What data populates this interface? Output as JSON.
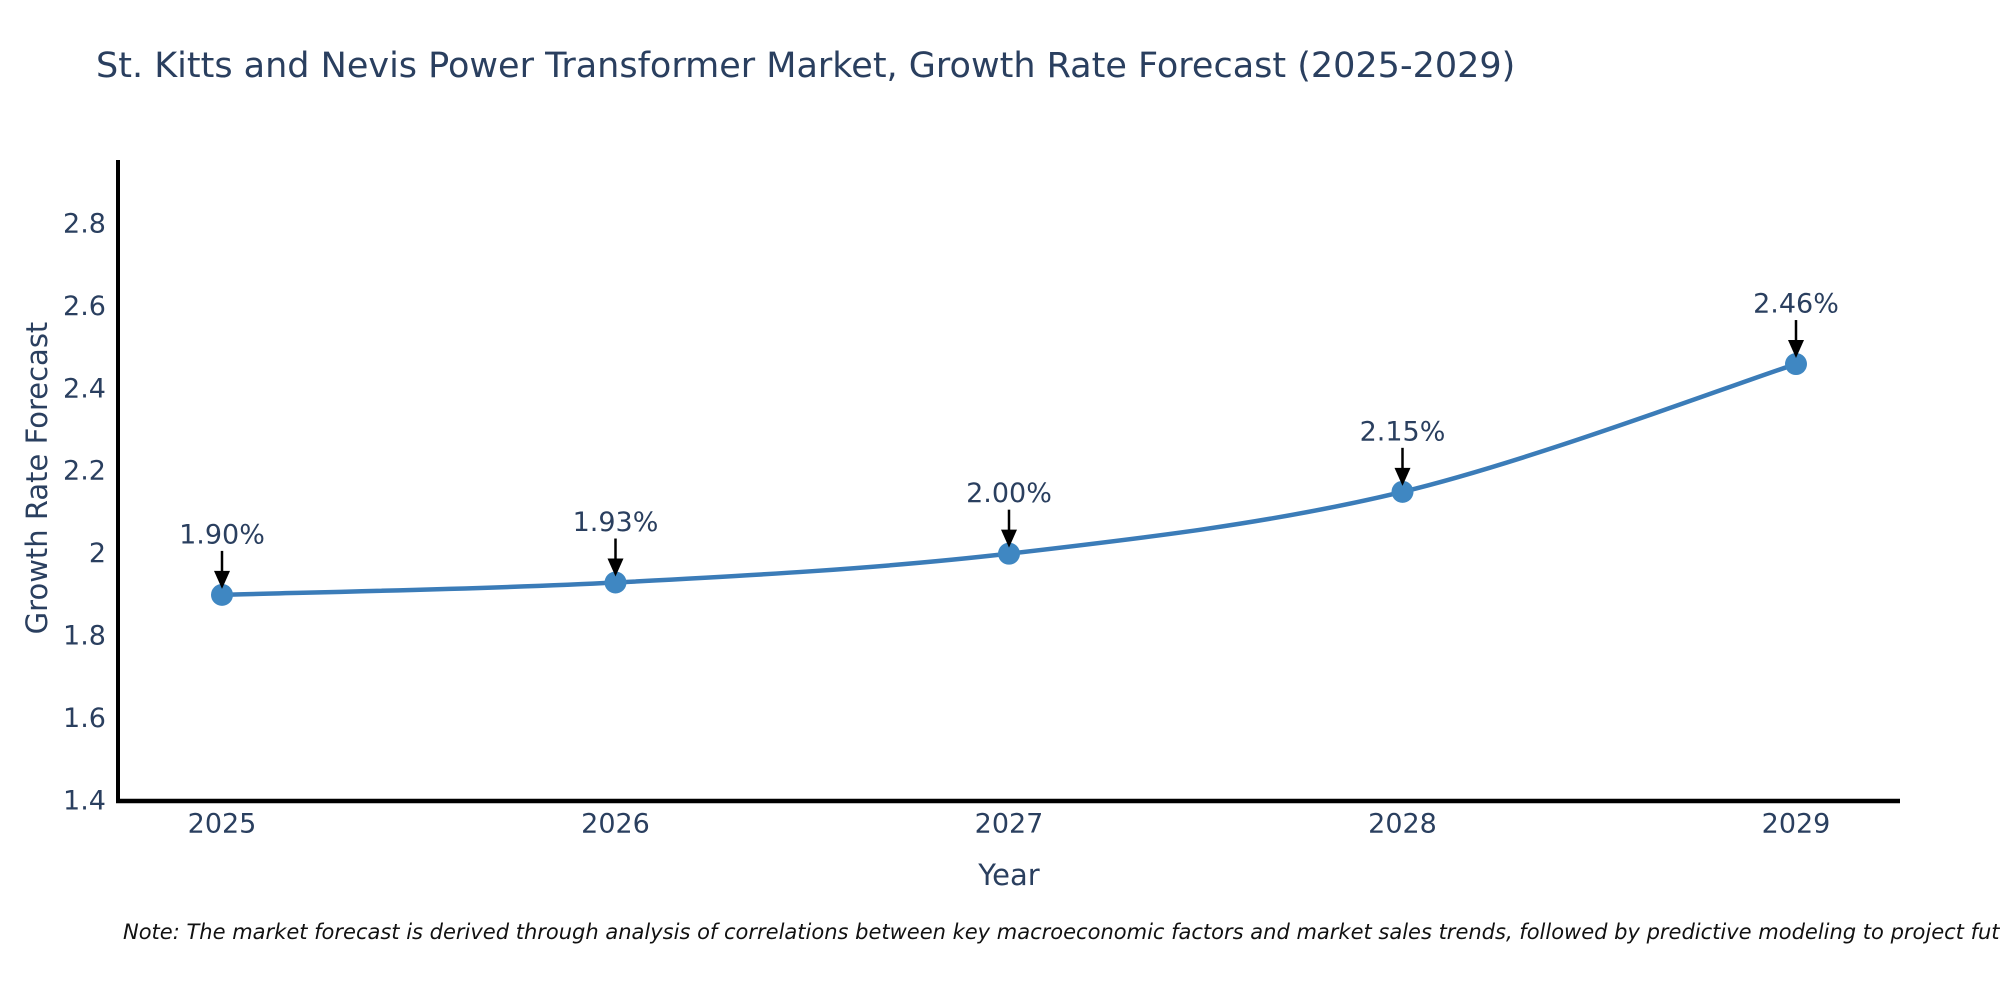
{
  "title": "St. Kitts and Nevis Power Transformer Market, Growth Rate Forecast (2025-2029)",
  "note": "Note: The market forecast is derived through analysis of correlations between key macroeconomic factors and market sales trends, followed by predictive modeling to project future sales",
  "chart_data": {
    "type": "line",
    "title": "St. Kitts and Nevis Power Transformer Market, Growth Rate Forecast (2025-2029)",
    "xlabel": "Year",
    "ylabel": "Growth Rate Forecast",
    "x": [
      "2025",
      "2026",
      "2027",
      "2028",
      "2029"
    ],
    "values": [
      1.9,
      1.93,
      2.0,
      2.15,
      2.46
    ],
    "point_labels": [
      "1.90%",
      "1.93%",
      "2.00%",
      "2.15%",
      "2.46%"
    ],
    "ylim": [
      1.4,
      2.955
    ],
    "yticks": [
      1.4,
      1.6,
      1.8,
      2,
      2.2,
      2.4,
      2.6,
      2.8
    ],
    "ytick_labels": [
      "1.4",
      "1.6",
      "1.8",
      "2",
      "2.2",
      "2.4",
      "2.6",
      "2.8"
    ],
    "grid": false,
    "legend": "none",
    "smooth": true,
    "colors": {
      "line": "#3b7cb8",
      "marker": "#3f87c2",
      "axis": "#000000",
      "tick_text": "#2a3f5f",
      "annotation_text": "#2a3f5f",
      "annotation_arrow": "#000000"
    }
  }
}
